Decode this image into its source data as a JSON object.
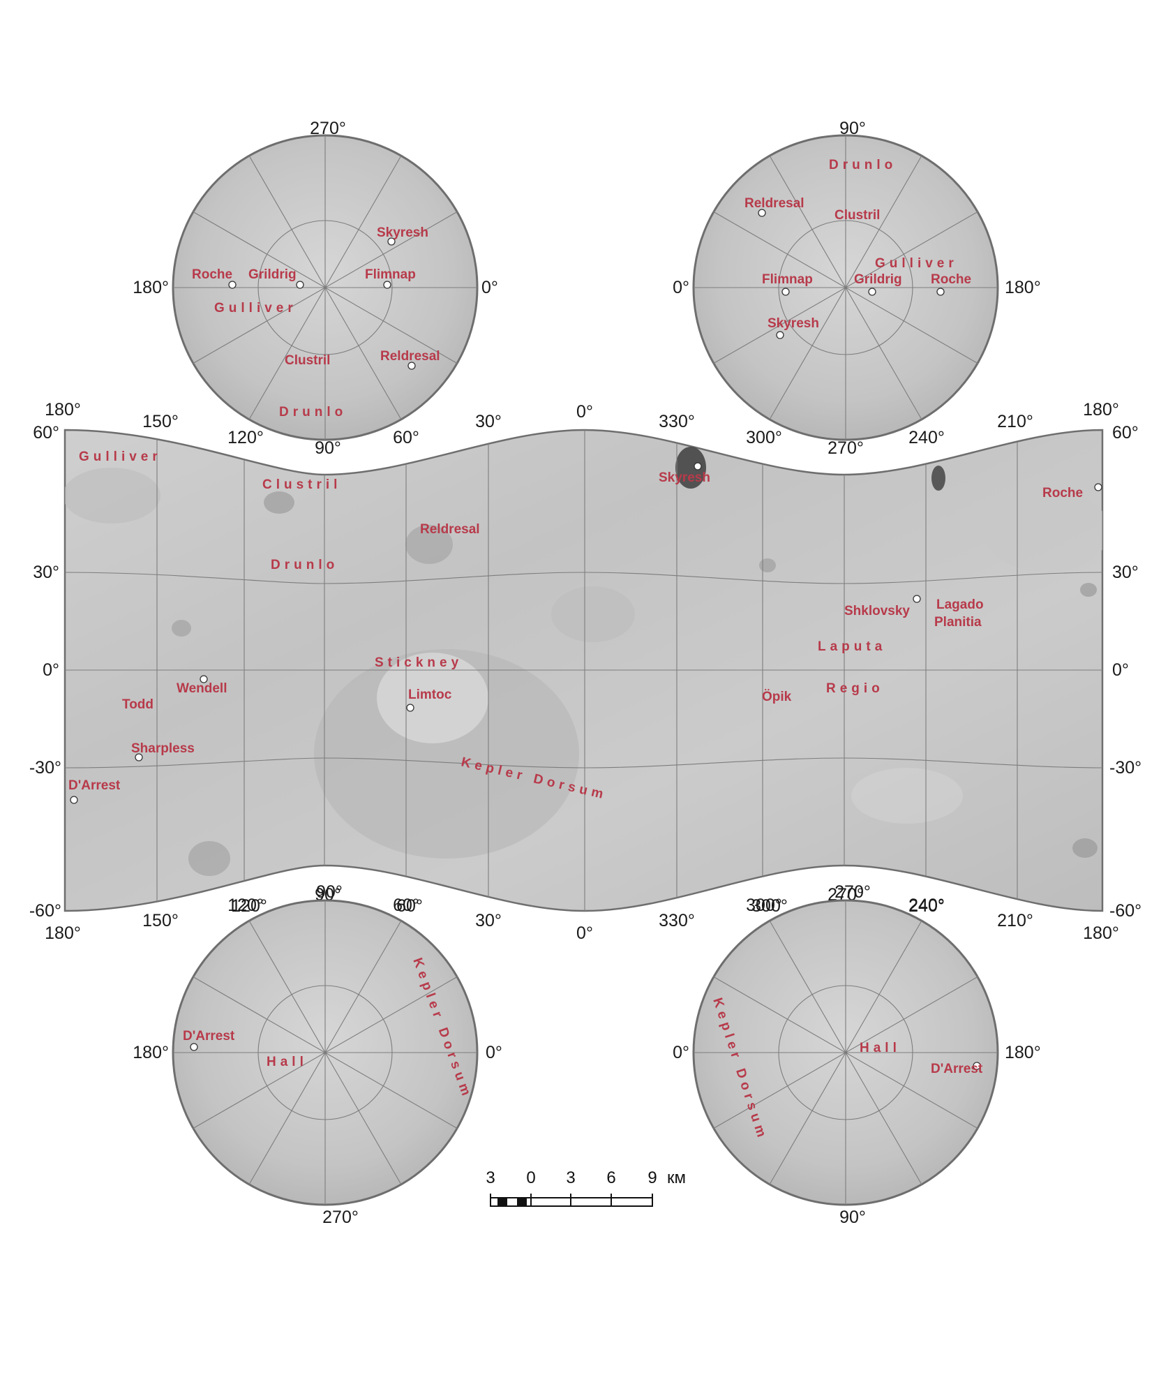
{
  "colors": {
    "label": "#b73a4a",
    "surface_light": "#d2d2d2",
    "surface_dark": "#a7a7a7",
    "grid": "#7d7d7d"
  },
  "main_map": {
    "top_lon_labels": [
      "180°",
      "150°",
      "120°",
      "90°",
      "60°",
      "30°",
      "0°",
      "330°",
      "300°",
      "270°",
      "240°",
      "210°",
      "180°"
    ],
    "bottom_lon_labels": [
      "180°",
      "150°",
      "120°",
      "90°",
      "60°",
      "30°",
      "0°",
      "330°",
      "300°",
      "270°",
      "240°",
      "210°",
      "180°"
    ],
    "left_lat_labels": [
      "60°",
      "30°",
      "0°",
      "-30°",
      "-60°"
    ],
    "right_lat_labels": [
      "60°",
      "30°",
      "0°",
      "-30°",
      "-60°"
    ],
    "features": [
      {
        "name": "Gulliver",
        "spaced": true,
        "dot": false
      },
      {
        "name": "Clustril",
        "spaced": true,
        "dot": false
      },
      {
        "name": "Reldresal",
        "spaced": false,
        "dot": false
      },
      {
        "name": "Drunlo",
        "spaced": true,
        "dot": false
      },
      {
        "name": "Skyresh",
        "spaced": false,
        "dot": true
      },
      {
        "name": "Roche",
        "spaced": false,
        "dot": true
      },
      {
        "name": "Shklovsky",
        "spaced": false,
        "dot": true
      },
      {
        "name": "Lagado",
        "spaced": false,
        "dot": false
      },
      {
        "name": "Planitia",
        "spaced": false,
        "dot": false
      },
      {
        "name": "Laputa",
        "spaced": true,
        "dot": false
      },
      {
        "name": "Regio",
        "spaced": true,
        "dot": false
      },
      {
        "name": "Stickney",
        "spaced": true,
        "dot": false
      },
      {
        "name": "Limtoc",
        "spaced": false,
        "dot": true
      },
      {
        "name": "Wendell",
        "spaced": false,
        "dot": true
      },
      {
        "name": "Todd",
        "spaced": false,
        "dot": false
      },
      {
        "name": "Sharpless",
        "spaced": false,
        "dot": true
      },
      {
        "name": "D'Arrest",
        "spaced": false,
        "dot": true
      },
      {
        "name": "Öpik",
        "spaced": false,
        "dot": false
      },
      {
        "name": "Kepler Dorsum",
        "spaced": true,
        "dot": false
      }
    ]
  },
  "polar_maps": [
    {
      "id": "north-left",
      "top": "270°",
      "left": "180°",
      "right": "0°",
      "bottom": "",
      "features": [
        {
          "name": "Skyresh",
          "spaced": false,
          "dot": true
        },
        {
          "name": "Roche",
          "spaced": false,
          "dot": true
        },
        {
          "name": "Grildrig",
          "spaced": false,
          "dot": true
        },
        {
          "name": "Flimnap",
          "spaced": false,
          "dot": true
        },
        {
          "name": "Gulliver",
          "spaced": true,
          "dot": false
        },
        {
          "name": "Clustril",
          "spaced": false,
          "dot": false
        },
        {
          "name": "Reldresal",
          "spaced": false,
          "dot": true
        },
        {
          "name": "Drunlo",
          "spaced": true,
          "dot": false
        }
      ]
    },
    {
      "id": "north-right",
      "top": "90°",
      "left": "0°",
      "right": "180°",
      "bottom": "",
      "features": [
        {
          "name": "Drunlo",
          "spaced": true,
          "dot": false
        },
        {
          "name": "Reldresal",
          "spaced": false,
          "dot": true
        },
        {
          "name": "Clustril",
          "spaced": false,
          "dot": false
        },
        {
          "name": "Gulliver",
          "spaced": true,
          "dot": false
        },
        {
          "name": "Flimnap",
          "spaced": false,
          "dot": true
        },
        {
          "name": "Grildrig",
          "spaced": false,
          "dot": true
        },
        {
          "name": "Roche",
          "spaced": false,
          "dot": true
        },
        {
          "name": "Skyresh",
          "spaced": false,
          "dot": true
        }
      ]
    },
    {
      "id": "south-left",
      "top": "90°",
      "left": "180°",
      "right": "0°",
      "bottom": "270°",
      "features": [
        {
          "name": "D'Arrest",
          "spaced": false,
          "dot": true
        },
        {
          "name": "Hall",
          "spaced": true,
          "dot": false
        },
        {
          "name": "Kepler Dorsum",
          "spaced": true,
          "dot": false
        }
      ]
    },
    {
      "id": "south-right",
      "top": "270°",
      "left": "0°",
      "right": "180°",
      "bottom": "90°",
      "features": [
        {
          "name": "Hall",
          "spaced": true,
          "dot": false
        },
        {
          "name": "D'Arrest",
          "spaced": false,
          "dot": true
        },
        {
          "name": "Kepler Dorsum",
          "spaced": true,
          "dot": false
        }
      ]
    }
  ],
  "south_polar_extra_labels": [
    "120°",
    "60°",
    "300°",
    "240°"
  ],
  "scale_bar": {
    "ticks": [
      "3",
      "0",
      "3",
      "6",
      "9"
    ],
    "unit": "км"
  }
}
